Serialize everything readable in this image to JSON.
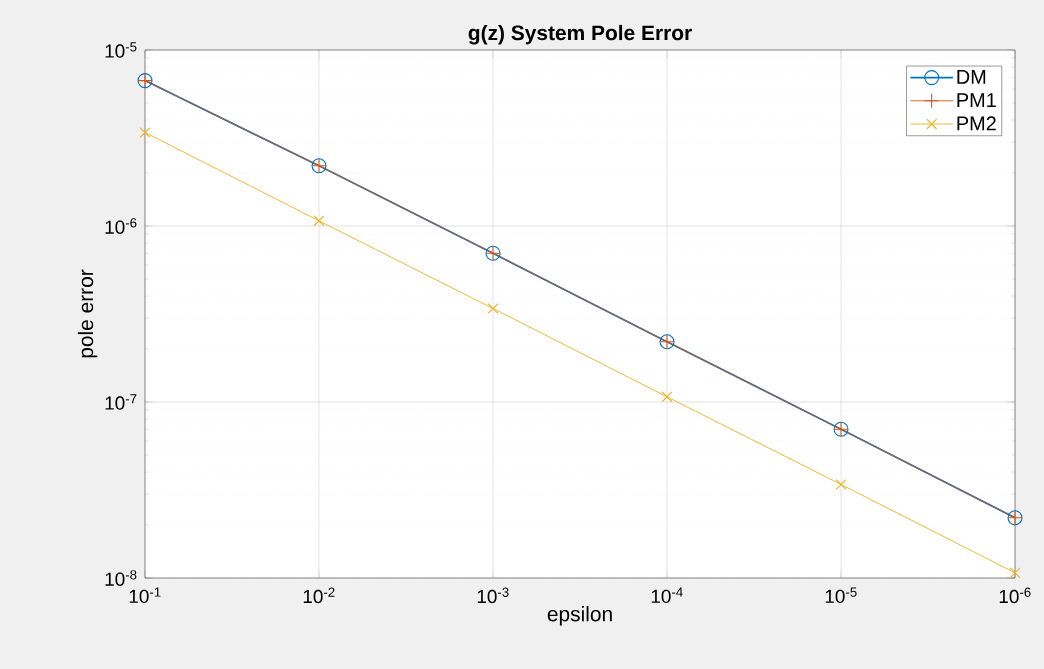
{
  "chart_data": {
    "type": "line",
    "title": "g(z) System Pole Error",
    "xlabel": "epsilon",
    "ylabel": "pole error",
    "x": [
      0.1,
      0.01,
      0.001,
      0.0001,
      1e-05,
      1e-06
    ],
    "series": [
      {
        "name": "DM",
        "color": "#0072bd",
        "marker": "circle",
        "values": [
          6.7e-06,
          2.2e-06,
          7e-07,
          2.2e-07,
          7e-08,
          2.2e-08
        ]
      },
      {
        "name": "PM1",
        "color": "#d95319",
        "marker": "plus",
        "values": [
          6.7e-06,
          2.2e-06,
          7e-07,
          2.2e-07,
          7e-08,
          2.2e-08
        ]
      },
      {
        "name": "PM2",
        "color": "#edb120",
        "marker": "cross",
        "values": [
          3.4e-06,
          1.07e-06,
          3.4e-07,
          1.07e-07,
          3.4e-08,
          1.07e-08
        ]
      }
    ],
    "log": "xy",
    "grid": true,
    "legend": "top right",
    "line_style": "solid",
    "xlim": [
      0.1,
      1e-06
    ],
    "ylim": [
      1e-08,
      1e-05
    ],
    "xticks": [
      {
        "value": 0.1,
        "label": "10$^{-1}$"
      },
      {
        "value": 0.01,
        "label": "10$^{-2}$"
      },
      {
        "value": 0.001,
        "label": "10$^{-3}$"
      },
      {
        "value": 0.0001,
        "label": "10$^{-4}$"
      },
      {
        "value": 1e-05,
        "label": "10$^{-5}$"
      },
      {
        "value": 1e-06,
        "label": "10$^{-6}$"
      }
    ],
    "yticks": [
      {
        "value": 1e-08,
        "label": "10$^{-8}$"
      },
      {
        "value": 1e-07,
        "label": "10$^{-7}$"
      },
      {
        "value": 1e-06,
        "label": "10$^{-6}$"
      },
      {
        "value": 1e-05,
        "label": "10$^{-5}$"
      }
    ]
  }
}
